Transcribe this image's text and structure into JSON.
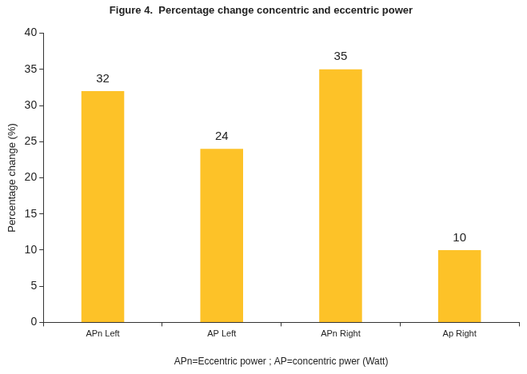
{
  "chart_data": {
    "type": "bar",
    "title": "Figure 4.  Percentage change concentric and eccentric power",
    "x_label": "APn=Eccentric power ; AP=concentric pwer (Watt)",
    "y_label": "Percentage change (%)",
    "categories": [
      "APn Left",
      "AP Left",
      "APn Right",
      "Ap Right"
    ],
    "values": [
      32,
      24,
      35,
      10
    ],
    "color": "#fdc228",
    "ylim": [
      0,
      40
    ],
    "yticks": [
      0,
      5,
      10,
      15,
      20,
      25,
      30,
      35,
      40
    ],
    "grid": false,
    "data_labels": true
  }
}
